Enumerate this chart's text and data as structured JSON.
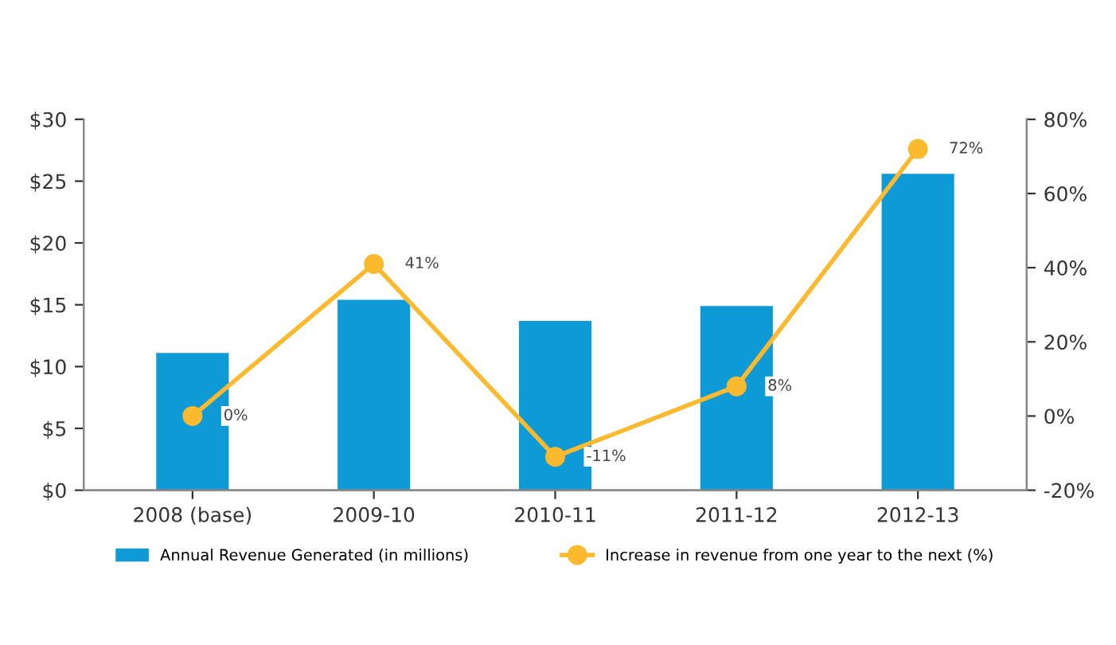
{
  "chart_data": {
    "type": "bar",
    "categories": [
      "2008 (base)",
      "2009-10",
      "2010-11",
      "2011-12",
      "2012-13"
    ],
    "series": [
      {
        "name": "Annual Revenue Generated (in millions)",
        "color": "#0e9ad7",
        "values": [
          11.1,
          15.4,
          13.7,
          14.9,
          25.6
        ]
      },
      {
        "name": "Increase in revenue from one year to the next (%)",
        "type": "line",
        "axis": "y2",
        "color": "#fbb92e",
        "marker": "circle",
        "values": [
          0,
          41,
          -11,
          8,
          72
        ],
        "value_labels": [
          "0%",
          "41%",
          "-11%",
          "8%",
          "72%"
        ]
      }
    ],
    "ylim": [
      0,
      30
    ],
    "yticks": [
      {
        "value": 0,
        "label": "$0"
      },
      {
        "value": 5,
        "label": "$5"
      },
      {
        "value": 10,
        "label": "$10"
      },
      {
        "value": 15,
        "label": "$15"
      },
      {
        "value": 20,
        "label": "$20"
      },
      {
        "value": 25,
        "label": "$25"
      },
      {
        "value": 30,
        "label": "$30"
      }
    ],
    "y2lim": [
      -20,
      80
    ],
    "y2ticks": [
      {
        "value": -20,
        "label": "-20%"
      },
      {
        "value": 0,
        "label": "0%"
      },
      {
        "value": 20,
        "label": "20%"
      },
      {
        "value": 40,
        "label": "40%"
      },
      {
        "value": 60,
        "label": "60%"
      },
      {
        "value": 80,
        "label": "80%"
      }
    ],
    "grid": false,
    "legend": "bottom"
  }
}
